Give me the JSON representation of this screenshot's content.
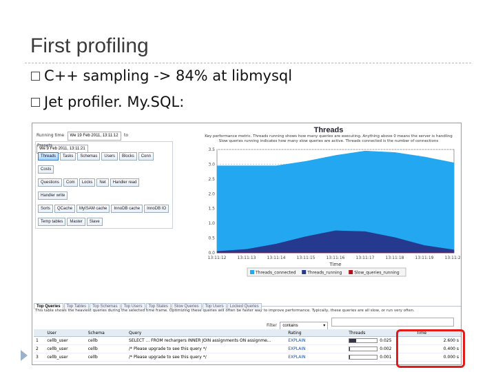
{
  "slide": {
    "title": "First profiling",
    "bullets": [
      "C++ sampling -> 84% at libmysql",
      "Jet profiler. My.SQL:"
    ]
  },
  "profiler": {
    "running_time_label": "Running time",
    "start_time": "We 19 Feb 2011, 13:11:12",
    "to_label": "to",
    "end_time": "We 9 Feb 2011, 13:11:21",
    "presets_label": "Presets",
    "presets": [
      [
        "Threads",
        "Tasks",
        "Schemas",
        "Users",
        "Blocks",
        "Conn",
        "Costs"
      ],
      [
        "Questions",
        "Com",
        "Locks",
        "Net",
        "Handler read",
        "Handler write"
      ],
      [
        "Sorts",
        "QCache",
        "MyISAM cache",
        "InnoDB cache",
        "InnoDB IO"
      ],
      [
        "Temp tables",
        "Master",
        "Slave"
      ]
    ],
    "selected_preset": "Threads",
    "chart_data": {
      "type": "area",
      "title": "Threads",
      "subtitle_lines": [
        "Key performance metric. Threads running shows how many queries are executing. Anything above 0 means the server is handling",
        "Slow queries running indicates how many slow queries are active. Threads connected is the number of connections"
      ],
      "xlabel": "Time",
      "x": [
        "13:11:12",
        "13:11:13",
        "13:11:14",
        "13:11:15",
        "13:11:16",
        "13:11:17",
        "13:11:18",
        "13:11:19",
        "13:11:20"
      ],
      "ylim": [
        0,
        3.5
      ],
      "y_ticks": [
        "0.0",
        "0.5",
        "1.0",
        "1.5",
        "2.0",
        "2.5",
        "3.0",
        "3.5"
      ],
      "series": [
        {
          "name": "Threads_connected",
          "color": "#22a7f0",
          "values": [
            2.95,
            2.95,
            2.95,
            3.1,
            3.3,
            3.45,
            3.4,
            3.25,
            3.05
          ]
        },
        {
          "name": "Threads_running",
          "color": "#253a8f",
          "values": [
            0.05,
            0.12,
            0.3,
            0.55,
            0.75,
            0.72,
            0.52,
            0.25,
            0.1
          ]
        },
        {
          "name": "Slow_queries_running",
          "color": "#b5101a",
          "values": [
            0,
            0,
            0,
            0,
            0,
            0,
            0,
            0,
            0
          ]
        }
      ],
      "legend_position": "bottom-right"
    },
    "tabs": [
      "Top Queries",
      "Top Tables",
      "Top Schemas",
      "Top Users",
      "Top States",
      "Slow Queries",
      "Top Users",
      "Locked Queries"
    ],
    "selected_tab": "Top Queries",
    "info_text": "This table shows the heaviest queries during the selected time frame. Optimizing these queries will often be faster way to improve performance. Typically, these queries are all slow, or run very often.",
    "filter_label": "Filter",
    "filter_value": "contains",
    "table": {
      "headers": [
        "",
        "User",
        "Schema",
        "Query",
        "Rating",
        "Threads",
        "Time"
      ],
      "rows": [
        {
          "num": "1",
          "user": "cellb_user",
          "schema": "cellb",
          "query": "SELECT ... FROM rechargers INNER JOIN assignments ON assignme...",
          "rating": "EXPLAIN",
          "bar": 0.25,
          "threads": "0.025",
          "time": "2.600 s"
        },
        {
          "num": "2",
          "user": "cellb_user",
          "schema": "cellb",
          "query": "/* Please upgrade to see this query */",
          "rating": "EXPLAIN",
          "bar": 0.02,
          "threads": "0.002",
          "time": "0.400 s"
        },
        {
          "num": "3",
          "user": "cellb_user",
          "schema": "cellb",
          "query": "/* Please upgrade to see this query */",
          "rating": "EXPLAIN",
          "bar": 0.01,
          "threads": "0.001",
          "time": "0.000 s"
        }
      ]
    }
  }
}
